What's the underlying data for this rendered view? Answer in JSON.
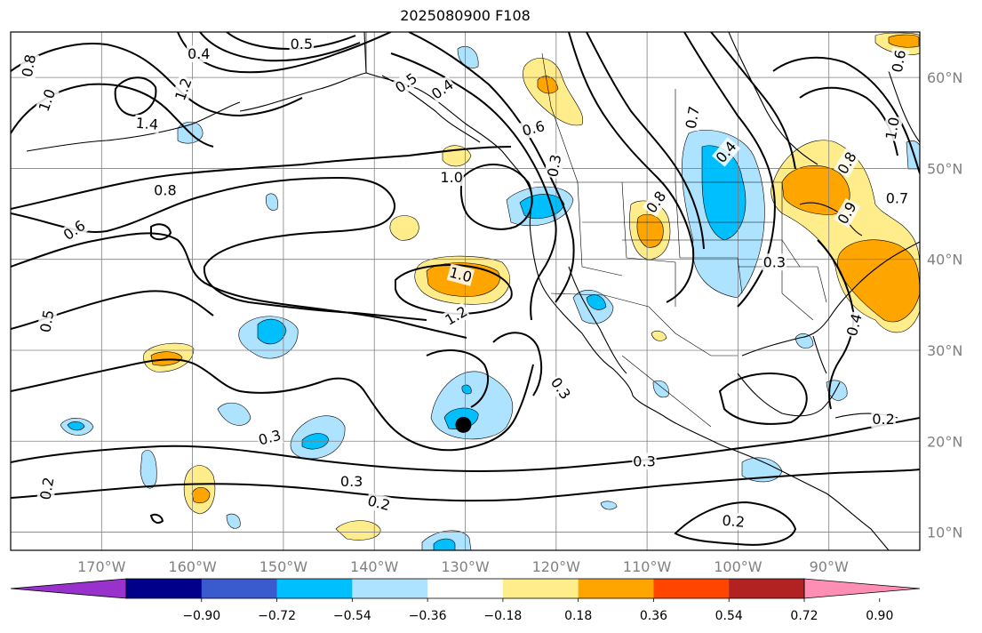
{
  "title": "2025080900 F108",
  "map": {
    "projection": "cylindrical",
    "lon_range": [
      -180,
      -80
    ],
    "lat_range": [
      8,
      65
    ],
    "coastline_color": "#000000",
    "grid_color": "#808080",
    "lon_labels": [
      {
        "lon": -170,
        "text": "170°W"
      },
      {
        "lon": -160,
        "text": "160°W"
      },
      {
        "lon": -150,
        "text": "150°W"
      },
      {
        "lon": -140,
        "text": "140°W"
      },
      {
        "lon": -130,
        "text": "130°W"
      },
      {
        "lon": -120,
        "text": "120°W"
      },
      {
        "lon": -110,
        "text": "110°W"
      },
      {
        "lon": -100,
        "text": "100°W"
      },
      {
        "lon": -90,
        "text": "90°W"
      }
    ],
    "lat_labels": [
      {
        "lat": 60,
        "text": "60°N"
      },
      {
        "lat": 50,
        "text": "50°N"
      },
      {
        "lat": 40,
        "text": "40°N"
      },
      {
        "lat": 30,
        "text": "30°N"
      },
      {
        "lat": 20,
        "text": "20°N"
      },
      {
        "lat": 10,
        "text": "10°N"
      }
    ],
    "marker": {
      "name": "storm-position",
      "lon": -130.2,
      "lat": 21.8,
      "color": "#000000"
    }
  },
  "colorbar": {
    "colors": [
      "#9932cc",
      "#00008b",
      "#3a5bcd",
      "#00bfff",
      "#ade3ff",
      "#ffffff",
      "#ffec8b",
      "#ffa500",
      "#ff4500",
      "#b22222",
      "#ff8eb4"
    ],
    "ticks": [
      "−0.90",
      "−0.72",
      "−0.54",
      "−0.36",
      "−0.18",
      "0.18",
      "0.36",
      "0.54",
      "0.72",
      "0.90"
    ]
  },
  "contour_labels": [
    {
      "text": "0.8",
      "lon": -178.0,
      "lat": 61.3,
      "angle": 80
    },
    {
      "text": "1.0",
      "lon": -176.0,
      "lat": 57.5,
      "angle": 70
    },
    {
      "text": "1.2",
      "lon": -161.0,
      "lat": 58.7,
      "angle": 70
    },
    {
      "text": "1.4",
      "lon": -165.0,
      "lat": 54.9,
      "angle": -5
    },
    {
      "text": "0.4",
      "lon": -159.3,
      "lat": 62.6,
      "angle": 0
    },
    {
      "text": "0.5",
      "lon": -148.0,
      "lat": 63.7,
      "angle": 0
    },
    {
      "text": "0.5",
      "lon": -136.5,
      "lat": 59.4,
      "angle": 35
    },
    {
      "text": "0.4",
      "lon": -132.5,
      "lat": 58.7,
      "angle": 35
    },
    {
      "text": "1.0",
      "lon": -131.5,
      "lat": 49.0,
      "angle": 0
    },
    {
      "text": "0.6",
      "lon": -122.5,
      "lat": 54.4,
      "angle": 15
    },
    {
      "text": "0.3",
      "lon": -120.2,
      "lat": 50.3,
      "angle": 80
    },
    {
      "text": "0.7",
      "lon": -105.0,
      "lat": 55.6,
      "angle": 80
    },
    {
      "text": "0.4",
      "lon": -101.3,
      "lat": 51.8,
      "angle": 50
    },
    {
      "text": "0.8",
      "lon": -109.0,
      "lat": 46.3,
      "angle": 55
    },
    {
      "text": "0.8",
      "lon": -88.0,
      "lat": 50.6,
      "angle": 60
    },
    {
      "text": "1.0",
      "lon": -83.0,
      "lat": 54.4,
      "angle": 80
    },
    {
      "text": "0.6",
      "lon": -82.3,
      "lat": 61.8,
      "angle": 80
    },
    {
      "text": "0.9",
      "lon": -88.0,
      "lat": 45.1,
      "angle": 60
    },
    {
      "text": "0.7",
      "lon": -82.5,
      "lat": 46.7,
      "angle": 0
    },
    {
      "text": "0.3",
      "lon": -96.0,
      "lat": 39.7,
      "angle": 0
    },
    {
      "text": "0.4",
      "lon": -87.2,
      "lat": 32.8,
      "angle": 75
    },
    {
      "text": "0.8",
      "lon": -163.0,
      "lat": 47.6,
      "angle": 0
    },
    {
      "text": "0.6",
      "lon": -173.0,
      "lat": 43.2,
      "angle": 35
    },
    {
      "text": "1.0",
      "lon": -130.5,
      "lat": 38.3,
      "angle": -15
    },
    {
      "text": "1.2",
      "lon": -131.0,
      "lat": 33.8,
      "angle": 30
    },
    {
      "text": "0.5",
      "lon": -176.0,
      "lat": 33.2,
      "angle": 80
    },
    {
      "text": "0.3",
      "lon": -151.5,
      "lat": 20.4,
      "angle": 15
    },
    {
      "text": "0.3",
      "lon": -142.5,
      "lat": 15.6,
      "angle": 0
    },
    {
      "text": "0.2",
      "lon": -139.5,
      "lat": 13.2,
      "angle": -15
    },
    {
      "text": "0.2",
      "lon": -176.0,
      "lat": 14.8,
      "angle": 80
    },
    {
      "text": "0.3",
      "lon": -119.5,
      "lat": 25.8,
      "angle": -55
    },
    {
      "text": "0.3",
      "lon": -110.3,
      "lat": 17.8,
      "angle": 0
    },
    {
      "text": "0.2",
      "lon": -100.5,
      "lat": 11.2,
      "angle": -5
    },
    {
      "text": "0.2",
      "lon": -84.0,
      "lat": 22.4,
      "angle": 0
    }
  ]
}
